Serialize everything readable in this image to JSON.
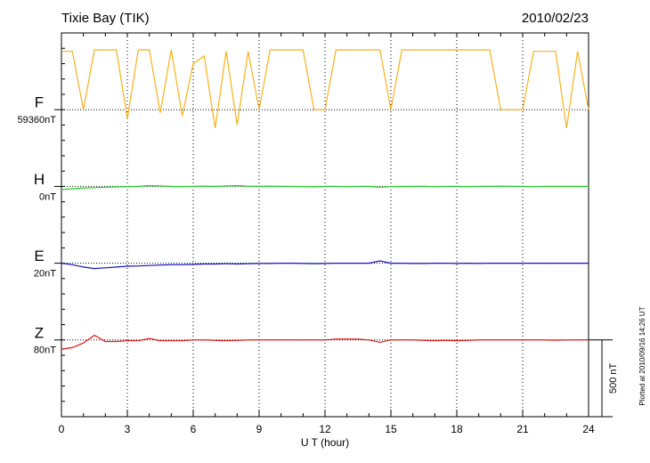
{
  "chart_data": {
    "type": "line",
    "title": "Tixie Bay (TIK)",
    "date": "2010/02/23",
    "x_label": "U T (hour)",
    "xlim": [
      0,
      24
    ],
    "xticks": [
      0,
      3,
      6,
      9,
      12,
      15,
      18,
      21,
      24
    ],
    "grid": true,
    "scale_bar": {
      "value": 500,
      "label": "500 nT"
    },
    "footnote": "Plotted at 2010/09/16 14:26 UT",
    "x": [
      0,
      0.5,
      1,
      1.5,
      2,
      2.5,
      3,
      3.5,
      4,
      4.5,
      5,
      5.5,
      6,
      6.5,
      7,
      7.5,
      8,
      8.5,
      9,
      9.5,
      10,
      10.5,
      11,
      11.5,
      12,
      12.5,
      13,
      13.5,
      14,
      14.5,
      15,
      15.5,
      16,
      16.5,
      17,
      17.5,
      18,
      18.5,
      19,
      19.5,
      20,
      20.5,
      21,
      21.5,
      22,
      22.5,
      23,
      23.5,
      24
    ],
    "series": [
      {
        "name": "F",
        "baseline_label": "59360nT",
        "color": "#f5b21b",
        "values": [
          380,
          380,
          0,
          390,
          390,
          390,
          -60,
          390,
          390,
          -20,
          390,
          -40,
          300,
          350,
          -120,
          380,
          -100,
          380,
          0,
          390,
          390,
          390,
          390,
          0,
          0,
          390,
          390,
          390,
          390,
          390,
          0,
          390,
          390,
          390,
          390,
          390,
          390,
          390,
          390,
          390,
          0,
          0,
          0,
          380,
          380,
          380,
          -120,
          380,
          0
        ]
      },
      {
        "name": "H",
        "baseline_label": "0nT",
        "color": "#22cc22",
        "values": [
          -20,
          -15,
          -10,
          -8,
          -5,
          -3,
          -2,
          0,
          5,
          3,
          0,
          -2,
          0,
          2,
          0,
          3,
          5,
          2,
          0,
          2,
          0,
          0,
          -2,
          -3,
          0,
          0,
          -2,
          0,
          0,
          -5,
          -2,
          0,
          0,
          0,
          -2,
          0,
          0,
          -2,
          0,
          0,
          2,
          0,
          0,
          -2,
          0,
          0,
          0,
          0,
          0
        ]
      },
      {
        "name": "E",
        "baseline_label": "20nT",
        "color": "#1414c0",
        "values": [
          0,
          -10,
          -25,
          -35,
          -30,
          -25,
          -20,
          -18,
          -15,
          -12,
          -10,
          -10,
          -8,
          -5,
          -5,
          -3,
          -5,
          -3,
          -2,
          -2,
          0,
          0,
          -2,
          -3,
          -2,
          0,
          0,
          0,
          0,
          15,
          0,
          0,
          -2,
          -2,
          0,
          0,
          -2,
          0,
          -2,
          0,
          0,
          0,
          0,
          0,
          0,
          0,
          0,
          0,
          0
        ]
      },
      {
        "name": "Z",
        "baseline_label": "80nT",
        "color": "#e01414",
        "values": [
          -60,
          -50,
          -20,
          30,
          -10,
          -10,
          -5,
          -5,
          10,
          -5,
          -5,
          -5,
          0,
          0,
          -3,
          -5,
          -3,
          0,
          0,
          0,
          0,
          0,
          0,
          0,
          0,
          5,
          5,
          5,
          0,
          -15,
          0,
          0,
          0,
          -3,
          -5,
          -3,
          -5,
          -3,
          0,
          0,
          0,
          0,
          0,
          0,
          0,
          -2,
          0,
          0,
          0
        ]
      }
    ]
  }
}
